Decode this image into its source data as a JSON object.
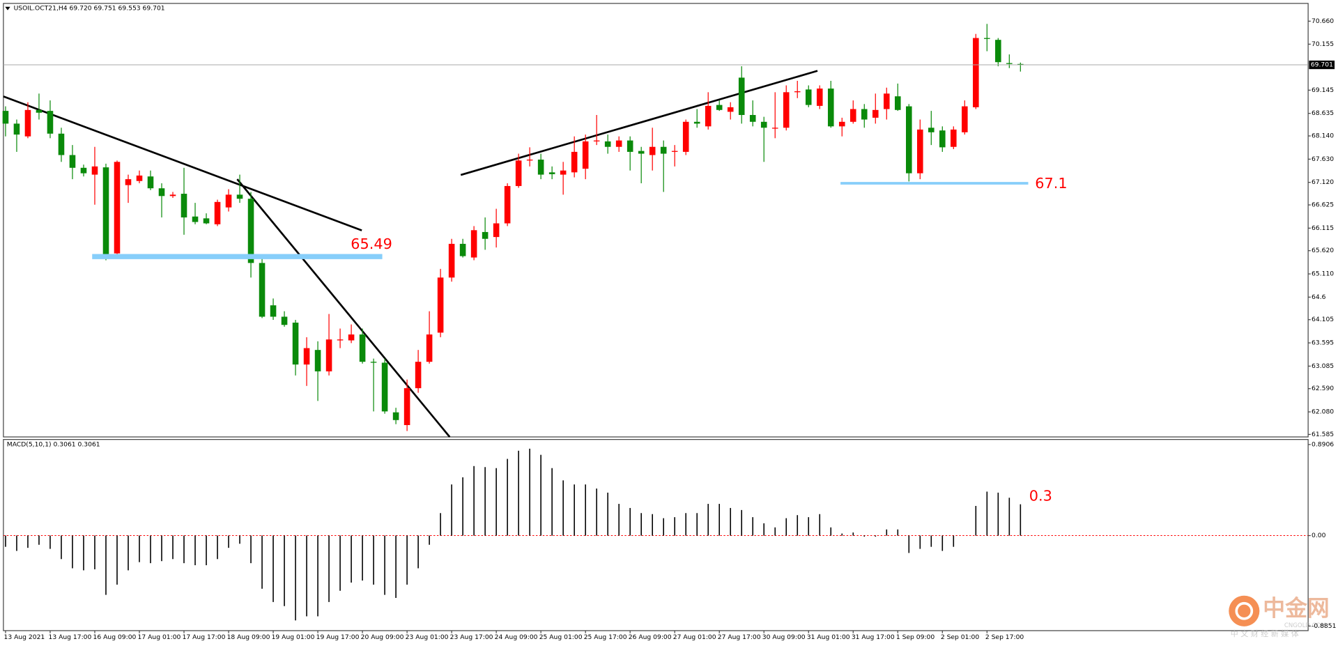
{
  "chart_data": [
    {
      "type": "candlestick",
      "title": "USOIL.OCT21,H4  69.720 69.751 69.553 69.701",
      "categories": [
        "13 Aug 2021",
        null,
        null,
        null,
        "13 Aug 17:00",
        null,
        null,
        null,
        "16 Aug 09:00",
        null,
        null,
        null,
        "17 Aug 01:00",
        null,
        null,
        null,
        "17 Aug 17:00",
        null,
        null,
        null,
        "18 Aug 09:00",
        null,
        null,
        null,
        "19 Aug 01:00",
        null,
        null,
        null,
        "19 Aug 17:00",
        null,
        null,
        null,
        "20 Aug 09:00",
        null,
        null,
        null,
        "23 Aug 01:00",
        null,
        null,
        null,
        "23 Aug 17:00",
        null,
        null,
        null,
        "24 Aug 09:00",
        null,
        null,
        null,
        "25 Aug 01:00",
        null,
        null,
        null,
        "25 Aug 17:00",
        null,
        null,
        null,
        "26 Aug 09:00",
        null,
        null,
        null,
        "27 Aug 01:00",
        null,
        null,
        null,
        "27 Aug 17:00",
        null,
        null,
        null,
        "30 Aug 09:00",
        null,
        null,
        null,
        "31 Aug 01:00",
        null,
        null,
        null,
        "31 Aug 17:00",
        null,
        null,
        null,
        "1 Sep 09:00",
        null,
        null,
        null,
        "2 Sep 01:00",
        null,
        null,
        null,
        "2 Sep 17:00",
        null,
        null,
        null
      ],
      "open": [
        68.69,
        68.41,
        68.13,
        68.71,
        68.69,
        68.19,
        67.72,
        67.44,
        67.29,
        67.45,
        65.56,
        67.06,
        67.15,
        67.25,
        66.99,
        66.82,
        66.87,
        66.37,
        66.33,
        66.2,
        66.57,
        66.85,
        66.76,
        65.35,
        64.42,
        64.17,
        64.04,
        63.12,
        63.44,
        62.97,
        63.65,
        63.65,
        63.78,
        63.18,
        63.16,
        62.07,
        61.79,
        62.6,
        63.18,
        63.82,
        65.03,
        65.77,
        65.47,
        66.03,
        65.92,
        66.22,
        67.04,
        67.6,
        67.62,
        67.34,
        67.29,
        67.34,
        67.42,
        68.02,
        68.02,
        67.9,
        68.04,
        67.81,
        67.72,
        67.9,
        67.79,
        67.79,
        68.45,
        68.35,
        68.82,
        68.67,
        69.42,
        68.6,
        68.45,
        68.3,
        68.32,
        69.1,
        69.16,
        68.8,
        69.18,
        68.35,
        68.45,
        68.73,
        68.54,
        68.73,
        69.01,
        68.79,
        67.32,
        68.32,
        68.26,
        67.9,
        68.22,
        68.77,
        70.29,
        70.25,
        69.74,
        69.72
      ],
      "high": [
        68.79,
        68.5,
        68.88,
        69.07,
        68.92,
        68.32,
        67.94,
        67.51,
        67.9,
        67.53,
        67.6,
        67.29,
        67.38,
        67.38,
        67.1,
        66.91,
        67.44,
        66.67,
        66.44,
        66.74,
        66.97,
        67.29,
        66.91,
        65.5,
        64.57,
        64.29,
        64.1,
        63.72,
        63.63,
        64.23,
        63.91,
        64.0,
        63.91,
        63.25,
        63.25,
        62.17,
        62.79,
        63.44,
        64.29,
        65.22,
        65.88,
        65.88,
        66.16,
        66.35,
        66.54,
        67.1,
        67.75,
        67.89,
        67.75,
        67.47,
        67.57,
        68.13,
        68.17,
        68.6,
        68.17,
        68.13,
        68.13,
        67.9,
        68.32,
        68.04,
        67.94,
        68.5,
        68.73,
        69.1,
        68.92,
        68.88,
        69.67,
        68.92,
        68.56,
        69.1,
        69.25,
        69.35,
        69.25,
        69.25,
        69.35,
        68.54,
        68.92,
        68.84,
        69.07,
        69.2,
        69.29,
        68.84,
        68.5,
        68.69,
        68.35,
        68.35,
        68.92,
        70.38,
        70.6,
        70.29,
        69.93,
        69.751
      ],
      "low": [
        68.13,
        67.79,
        68.09,
        68.5,
        68.09,
        67.57,
        67.19,
        67.25,
        66.63,
        65.41,
        65.5,
        66.67,
        67.1,
        66.95,
        66.35,
        66.78,
        65.97,
        66.2,
        66.2,
        66.16,
        66.48,
        66.67,
        65.03,
        64.14,
        64.1,
        63.95,
        62.88,
        62.65,
        62.32,
        62.88,
        63.48,
        63.59,
        63.14,
        62.09,
        62.04,
        61.81,
        61.66,
        62.5,
        63.14,
        63.72,
        64.94,
        65.47,
        65.41,
        65.64,
        65.69,
        66.16,
        67.0,
        67.47,
        67.19,
        67.19,
        66.85,
        67.23,
        67.19,
        67.94,
        67.75,
        67.79,
        67.38,
        67.1,
        67.38,
        66.91,
        67.47,
        67.72,
        68.32,
        68.28,
        68.69,
        68.5,
        68.41,
        68.35,
        67.57,
        68.09,
        68.26,
        68.97,
        68.77,
        68.73,
        68.32,
        68.13,
        68.41,
        68.32,
        68.41,
        68.5,
        68.69,
        67.14,
        67.19,
        67.94,
        67.79,
        67.85,
        68.17,
        68.73,
        70.0,
        69.67,
        69.63,
        69.553
      ],
      "close": [
        68.41,
        68.17,
        68.71,
        68.65,
        68.19,
        67.72,
        67.44,
        67.32,
        67.47,
        65.54,
        67.57,
        67.19,
        67.27,
        66.99,
        66.82,
        66.85,
        66.35,
        66.25,
        66.22,
        66.69,
        66.85,
        66.76,
        65.35,
        64.17,
        64.17,
        63.99,
        63.12,
        63.48,
        62.97,
        63.67,
        63.67,
        63.78,
        63.18,
        63.16,
        62.09,
        61.9,
        62.6,
        63.18,
        63.78,
        65.03,
        65.77,
        65.5,
        66.07,
        65.88,
        66.22,
        67.04,
        67.6,
        67.62,
        67.29,
        67.3,
        67.38,
        67.79,
        68.02,
        68.04,
        67.9,
        68.04,
        67.79,
        67.75,
        67.9,
        67.75,
        67.81,
        68.45,
        68.41,
        68.8,
        68.71,
        68.77,
        68.6,
        68.45,
        68.32,
        68.32,
        69.1,
        69.12,
        68.82,
        69.18,
        68.35,
        68.45,
        68.73,
        68.5,
        68.71,
        69.07,
        68.71,
        67.32,
        68.28,
        68.22,
        67.89,
        68.28,
        68.79,
        70.29,
        70.27,
        69.76,
        69.72,
        69.701
      ],
      "up_color": "#ff0000",
      "down_color": "#0a8a0a",
      "ylim": [
        61.53,
        71.05
      ],
      "yticks": [
        {
          "value": 70.66,
          "label": "70.660"
        },
        {
          "value": 70.155,
          "label": "70.155"
        },
        {
          "value": 69.145,
          "label": "69.145"
        },
        {
          "value": 68.635,
          "label": "68.635"
        },
        {
          "value": 68.14,
          "label": "68.140"
        },
        {
          "value": 67.63,
          "label": "67.630"
        },
        {
          "value": 67.12,
          "label": "67.120"
        },
        {
          "value": 66.625,
          "label": "66.625"
        },
        {
          "value": 66.115,
          "label": "66.115"
        },
        {
          "value": 65.62,
          "label": "65.620"
        },
        {
          "value": 65.11,
          "label": "65.110"
        },
        64.6,
        {
          "value": 64.105,
          "label": "64.105"
        },
        {
          "value": 63.595,
          "label": "63.595"
        },
        {
          "value": 63.085,
          "label": "63.085"
        },
        {
          "value": 62.59,
          "label": "62.590"
        },
        {
          "value": 62.08,
          "label": "62.080"
        },
        {
          "value": 61.585,
          "label": "61.585"
        }
      ],
      "levels": [
        65.49,
        67.1
      ],
      "level_color": "#87cefa",
      "annotation_color": "#ff0000"
    },
    {
      "type": "bar",
      "title": "MACD(5,10,1) 0.3061 0.3061",
      "values": [
        -0.11,
        -0.15,
        -0.12,
        -0.09,
        -0.13,
        -0.23,
        -0.32,
        -0.34,
        -0.33,
        -0.58,
        -0.48,
        -0.34,
        -0.26,
        -0.27,
        -0.25,
        -0.23,
        -0.27,
        -0.29,
        -0.29,
        -0.23,
        -0.12,
        -0.08,
        -0.27,
        -0.52,
        -0.65,
        -0.69,
        -0.83,
        -0.79,
        -0.79,
        -0.65,
        -0.54,
        -0.46,
        -0.44,
        -0.48,
        -0.58,
        -0.61,
        -0.48,
        -0.32,
        -0.09,
        0.22,
        0.5,
        0.57,
        0.68,
        0.67,
        0.66,
        0.75,
        0.83,
        0.85,
        0.79,
        0.66,
        0.54,
        0.5,
        0.5,
        0.46,
        0.42,
        0.31,
        0.27,
        0.22,
        0.21,
        0.17,
        0.18,
        0.22,
        0.22,
        0.31,
        0.31,
        0.27,
        0.25,
        0.18,
        0.12,
        0.08,
        0.17,
        0.2,
        0.18,
        0.21,
        0.08,
        0.02,
        0.03,
        -0.01,
        -0.01,
        0.06,
        0.06,
        -0.17,
        -0.13,
        -0.11,
        -0.15,
        -0.11,
        0,
        0.29,
        0.43,
        0.42,
        0.37,
        0.3061
      ],
      "color": "#000000",
      "zero_line_color": "#ff0000",
      "ylim": [
        -0.93,
        0.94
      ],
      "yticks": [
        {
          "value": 0.8906,
          "label": "0.8906"
        },
        {
          "value": 0,
          "label": "0.00"
        },
        {
          "value": -0.8851,
          "label": "-0.8851"
        }
      ],
      "annotation": 0.3,
      "annotation_color": "#ff0000"
    }
  ],
  "watermark": {
    "brand": "中金网",
    "site": "CNGOLD.COM",
    "slogan": "中 文 财 经 新 媒 体"
  }
}
